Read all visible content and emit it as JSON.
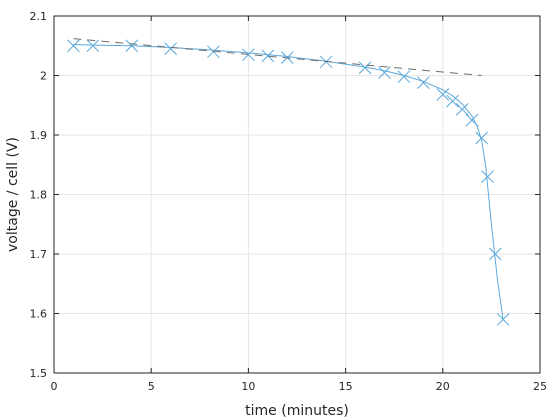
{
  "chart_data": {
    "type": "line",
    "xlabel": "time (minutes)",
    "ylabel": "voltage / cell (V)",
    "xlim": [
      0,
      25
    ],
    "ylim": [
      1.5,
      2.1
    ],
    "xticks": [
      0,
      5,
      10,
      15,
      20,
      25
    ],
    "yticks": [
      1.5,
      1.6,
      1.7,
      1.8,
      1.9,
      2,
      2.1
    ],
    "xtick_labels": [
      "0",
      "5",
      "10",
      "15",
      "20",
      "25"
    ],
    "ytick_labels": [
      "1.5",
      "1.6",
      "1.7",
      "1.8",
      "1.9",
      "2",
      "2.1"
    ],
    "grid": true,
    "series": [
      {
        "kind": "markers",
        "marker": "x",
        "color": "#5aa9dc",
        "x": [
          1,
          2,
          4,
          6,
          8.2,
          10,
          11,
          12,
          14,
          16,
          17,
          18,
          19,
          20,
          20.5,
          21,
          21.5,
          22,
          22.3,
          22.7,
          23.1
        ],
        "y": [
          2.05,
          2.05,
          2.05,
          2.045,
          2.04,
          2.035,
          2.033,
          2.03,
          2.023,
          2.013,
          2.005,
          1.998,
          1.988,
          1.968,
          1.957,
          1.943,
          1.925,
          1.895,
          1.83,
          1.7,
          1.59
        ]
      },
      {
        "kind": "fit-curve",
        "color": "#5aa9dc",
        "x": [
          1,
          2,
          4,
          6,
          8,
          10,
          12,
          14,
          16,
          17,
          18,
          19,
          20,
          20.5,
          21,
          21.5,
          21.8,
          22,
          22.2,
          22.5,
          22.8,
          23.1
        ],
        "y": [
          2.052,
          2.051,
          2.05,
          2.047,
          2.043,
          2.038,
          2.032,
          2.024,
          2.014,
          2.008,
          2.0,
          1.99,
          1.976,
          1.966,
          1.952,
          1.932,
          1.912,
          1.89,
          1.85,
          1.75,
          1.66,
          1.59
        ]
      },
      {
        "kind": "linear-fit",
        "style": "dashed",
        "color": "#6e6e6e",
        "x": [
          1,
          22
        ],
        "y": [
          2.062,
          2.0
        ]
      }
    ]
  }
}
